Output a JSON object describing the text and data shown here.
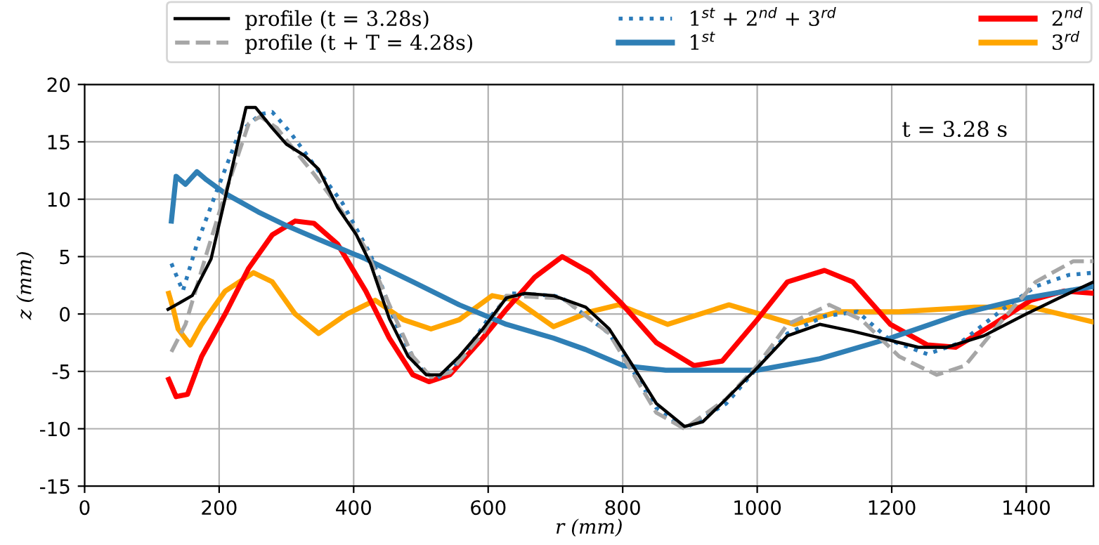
{
  "chart_data": {
    "type": "line",
    "xlabel": "r (mm)",
    "ylabel": "z (mm)",
    "xlim": [
      0,
      1500
    ],
    "ylim": [
      -15,
      20
    ],
    "xticks": [
      0,
      200,
      400,
      600,
      800,
      1000,
      1200,
      1400
    ],
    "yticks": [
      -15,
      -10,
      -5,
      0,
      5,
      10,
      15,
      20
    ],
    "grid": true,
    "legend": "top",
    "annotations": [
      "t = 3.28 s"
    ],
    "series": [
      {
        "name": "profile (t = 3.28s)",
        "color": "#000000",
        "line_style": "solid",
        "x": [
          124,
          160,
          188,
          209,
          240,
          254,
          279,
          300,
          327,
          348,
          376,
          404,
          425,
          453,
          481,
          508,
          529,
          557,
          592,
          627,
          655,
          697,
          745,
          780,
          815,
          850,
          892,
          919,
          954,
          1000,
          1045,
          1093,
          1142,
          1198,
          1240,
          1282,
          1337,
          1400,
          1449,
          1500
        ],
        "values": [
          0.4,
          1.6,
          4.8,
          10.1,
          18,
          18,
          16.2,
          14.8,
          13.8,
          12.6,
          9.3,
          6.9,
          4.4,
          -0.4,
          -3.7,
          -5.3,
          -5.3,
          -3.7,
          -1.3,
          1.4,
          1.8,
          1.6,
          0.6,
          -1.3,
          -4.5,
          -7.8,
          -9.8,
          -9.4,
          -7.4,
          -4.7,
          -1.9,
          -0.9,
          -1.5,
          -2.3,
          -2.9,
          -2.9,
          -1.9,
          0,
          1.4,
          2.8
        ]
      },
      {
        "name": "profile (t + T = 4.28s)",
        "color": "#a6a6a6",
        "line_style": "dashed",
        "x": [
          129,
          150,
          181,
          209,
          244,
          261,
          286,
          313,
          341,
          383,
          418,
          453,
          488,
          515,
          543,
          592,
          627,
          697,
          710,
          780,
          850,
          892,
          954,
          1000,
          1045,
          1107,
          1155,
          1211,
          1267,
          1309,
          1365,
          1414,
          1470,
          1500
        ],
        "values": [
          -3.3,
          -0.9,
          5.2,
          10.5,
          16.6,
          17.2,
          16.2,
          14.2,
          12.2,
          8.9,
          5.7,
          0.8,
          -3.7,
          -5.5,
          -5.1,
          -1.7,
          1.6,
          1.4,
          1.4,
          -1.7,
          -8.6,
          -10,
          -7.4,
          -4.5,
          -0.9,
          0.8,
          -0.5,
          -3.7,
          -5.3,
          -4.5,
          -0.5,
          2.8,
          4.6,
          4.6
        ]
      },
      {
        "name": "1$^{st}$ + 2$^{nd}$ + 3$^{rd}$",
        "color": "#2b7bba",
        "line_style": "dotted",
        "x": [
          129,
          146,
          167,
          195,
          230,
          261,
          279,
          306,
          341,
          383,
          425,
          460,
          494,
          522,
          557,
          599,
          634,
          697,
          710,
          780,
          850,
          892,
          954,
          1000,
          1045,
          1100,
          1149,
          1198,
          1253,
          1302,
          1365,
          1414,
          1463,
          1500
        ],
        "values": [
          4.4,
          2,
          6.1,
          10.5,
          15.8,
          17.4,
          17.6,
          15.8,
          13,
          9.7,
          5.2,
          -0.5,
          -4.5,
          -5.7,
          -4.1,
          -0.5,
          1.8,
          1.6,
          1.4,
          -1.7,
          -8.2,
          -10,
          -7.8,
          -4.7,
          -1.7,
          -0.2,
          0.2,
          -2.3,
          -3.5,
          -2.5,
          0.4,
          2.4,
          3.4,
          3.6
        ]
      },
      {
        "name": "1$^{st}$",
        "color": "#2f7fb5",
        "line_style": "solid",
        "x": [
          129,
          136,
          150,
          167,
          181,
          209,
          258,
          300,
          348,
          418,
          488,
          557,
          627,
          697,
          745,
          801,
          864,
          1000,
          1093,
          1198,
          1302,
          1400,
          1500
        ],
        "values": [
          8.1,
          12,
          11.3,
          12.4,
          11.7,
          10.5,
          8.9,
          7.7,
          6.5,
          4.8,
          2.8,
          0.8,
          -0.9,
          -2.1,
          -3.1,
          -4.5,
          -4.9,
          -4.9,
          -3.9,
          -2.1,
          0,
          1.4,
          2.4
        ]
      },
      {
        "name": "2$^{nd}$",
        "color": "#ff0000",
        "line_style": "solid",
        "x": [
          125,
          136,
          153,
          174,
          209,
          244,
          279,
          313,
          341,
          376,
          418,
          453,
          488,
          512,
          543,
          592,
          627,
          669,
          710,
          752,
          797,
          850,
          906,
          948,
          1000,
          1045,
          1100,
          1142,
          1198,
          1253,
          1295,
          1351,
          1407,
          1456,
          1500
        ],
        "values": [
          -5.7,
          -7.2,
          -7,
          -3.7,
          0,
          4,
          6.9,
          8.1,
          7.9,
          6.1,
          2,
          -2.1,
          -5.3,
          -5.9,
          -5.3,
          -2.1,
          0.4,
          3.2,
          5,
          3.6,
          1,
          -2.5,
          -4.5,
          -4.1,
          -0.5,
          2.8,
          3.8,
          2.8,
          -0.9,
          -2.7,
          -2.9,
          -0.9,
          1.2,
          2,
          1.8
        ]
      },
      {
        "name": "3$^{rd}$",
        "color": "#ffa500",
        "line_style": "solid",
        "x": [
          125,
          132,
          139,
          157,
          174,
          209,
          251,
          279,
          313,
          348,
          390,
          432,
          474,
          515,
          557,
          606,
          641,
          697,
          752,
          794,
          867,
          958,
          1055,
          1121,
          1211,
          1323,
          1407,
          1500
        ],
        "values": [
          1.8,
          0.4,
          -1.3,
          -2.7,
          -0.9,
          2,
          3.6,
          2.8,
          0,
          -1.7,
          0,
          1.2,
          -0.5,
          -1.3,
          -0.5,
          1.6,
          1.2,
          -1.1,
          0.2,
          0.8,
          -0.9,
          0.8,
          -0.9,
          0.2,
          0.2,
          0.6,
          0.6,
          -0.7
        ]
      }
    ]
  }
}
